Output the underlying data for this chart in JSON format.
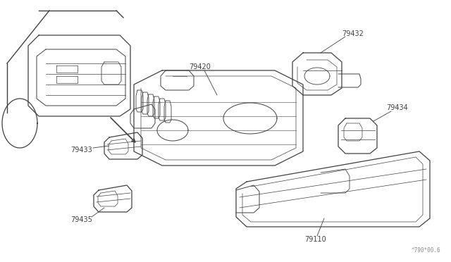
{
  "bg_color": "#ffffff",
  "line_color": "#404040",
  "text_color": "#404040",
  "watermark": "^790*00.6",
  "fig_width": 6.4,
  "fig_height": 3.72,
  "dpi": 100
}
